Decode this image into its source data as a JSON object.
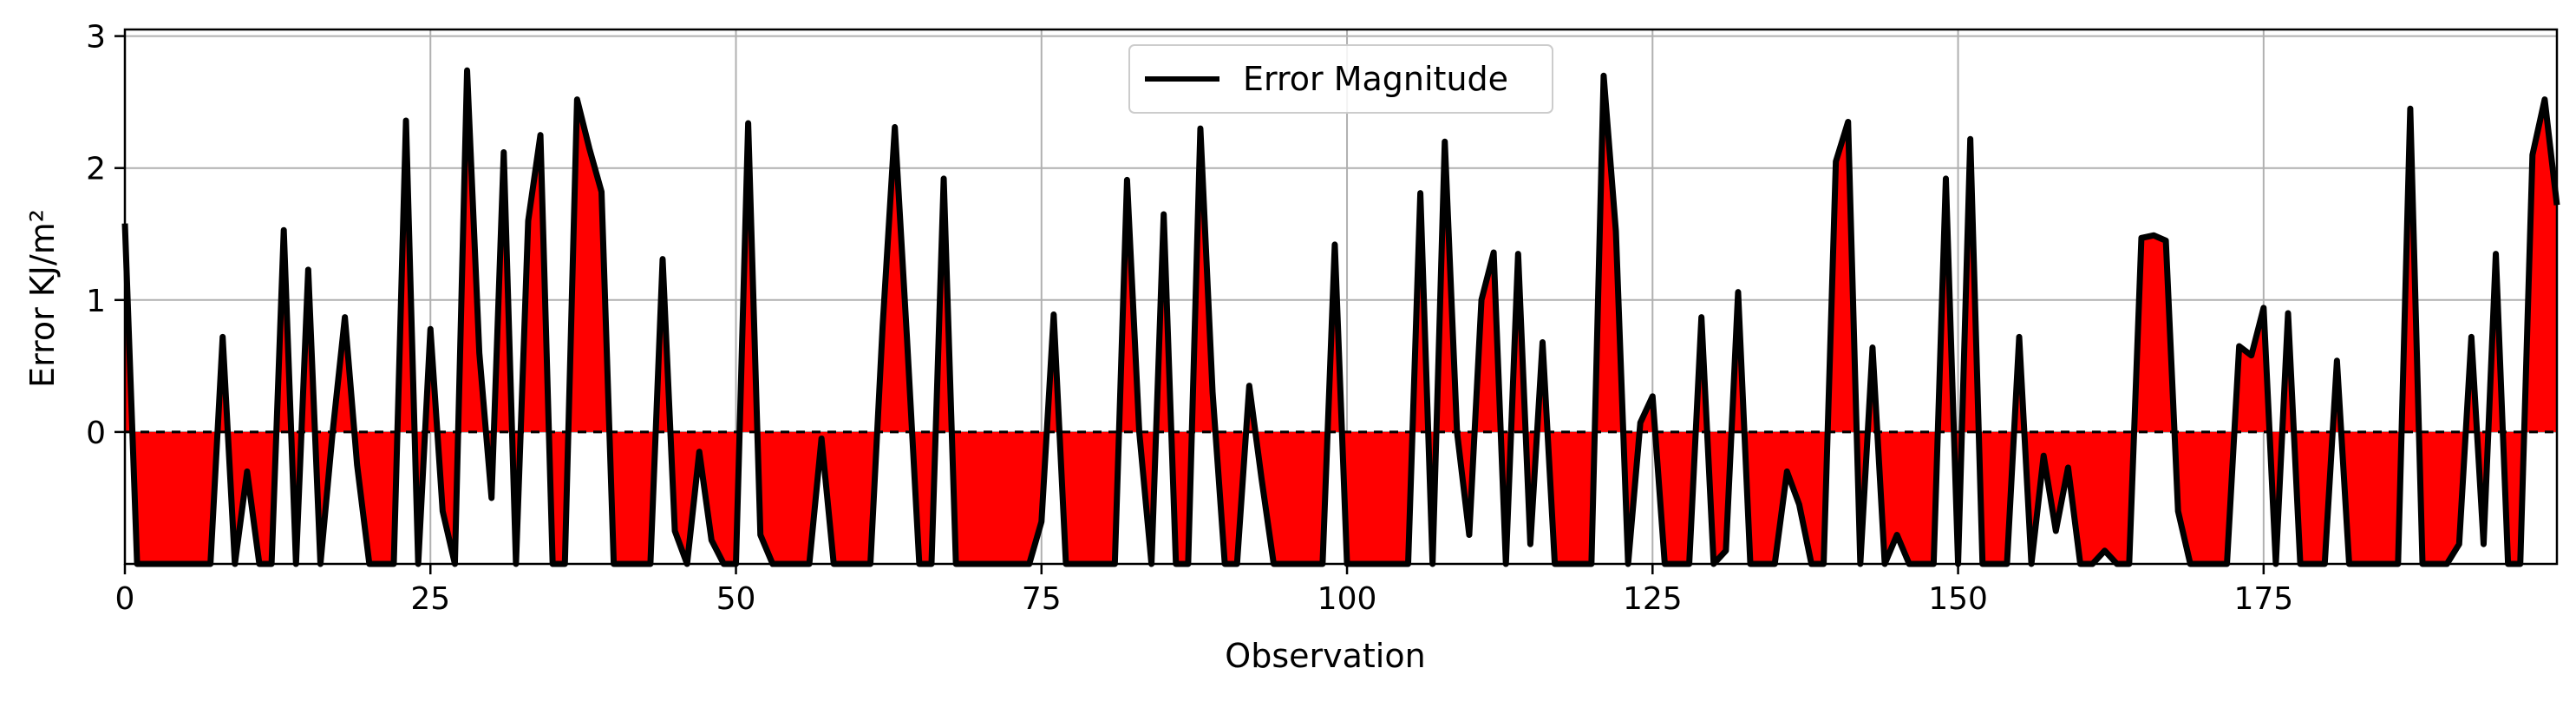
{
  "chart_data": {
    "type": "line",
    "title": "",
    "xlabel": "Observation",
    "ylabel": "Error KJ/m²",
    "xlim": [
      0,
      199
    ],
    "ylim": [
      -1.0,
      3.05
    ],
    "x_ticks": [
      0,
      25,
      50,
      75,
      100,
      125,
      150,
      175
    ],
    "y_ticks": [
      0,
      1,
      2,
      3
    ],
    "grid": true,
    "legend_position": "top-center",
    "fill_color": "#ff0000",
    "line_color": "#000000",
    "baseline": 0,
    "series": [
      {
        "name": "Error Magnitude",
        "values": [
          1.58,
          -1.0,
          -1.0,
          -1.0,
          -1.0,
          -1.0,
          -1.0,
          -1.0,
          0.72,
          -1.0,
          -0.3,
          -1.0,
          -1.0,
          1.53,
          -1.0,
          1.23,
          -1.0,
          0.0,
          0.87,
          -0.25,
          -1.0,
          -1.0,
          -1.0,
          2.36,
          -1.0,
          0.78,
          -0.6,
          -1.0,
          2.74,
          0.6,
          -0.5,
          2.12,
          -1.0,
          1.6,
          2.25,
          -1.0,
          -1.0,
          2.52,
          2.15,
          1.82,
          -1.0,
          -1.0,
          -1.0,
          -1.0,
          1.31,
          -0.75,
          -1.0,
          -0.15,
          -0.82,
          -1.0,
          -1.0,
          2.34,
          -0.78,
          -1.0,
          -1.0,
          -1.0,
          -1.0,
          -0.05,
          -1.0,
          -1.0,
          -1.0,
          -1.0,
          0.8,
          2.31,
          0.7,
          -1.0,
          -1.0,
          1.92,
          -1.0,
          -1.0,
          -1.0,
          -1.0,
          -1.0,
          -1.0,
          -1.0,
          -0.68,
          0.89,
          -1.0,
          -1.0,
          -1.0,
          -1.0,
          -1.0,
          1.91,
          0.0,
          -1.0,
          1.65,
          -1.0,
          -1.0,
          2.3,
          0.3,
          -1.0,
          -1.0,
          0.35,
          -0.35,
          -1.0,
          -1.0,
          -1.0,
          -1.0,
          -1.0,
          1.42,
          -1.0,
          -1.0,
          -1.0,
          -1.0,
          -1.0,
          -1.0,
          1.81,
          -1.0,
          2.2,
          0.0,
          -0.78,
          1.0,
          1.36,
          -1.0,
          1.35,
          -0.85,
          0.68,
          -1.0,
          -1.0,
          -1.0,
          -1.0,
          2.7,
          1.52,
          -1.0,
          0.07,
          0.27,
          -1.0,
          -1.0,
          -1.0,
          0.87,
          -1.0,
          -0.9,
          1.06,
          -1.0,
          -1.0,
          -1.0,
          -0.3,
          -0.55,
          -1.0,
          -1.0,
          2.05,
          2.35,
          -1.0,
          0.64,
          -1.0,
          -0.78,
          -1.0,
          -1.0,
          -1.0,
          1.92,
          -1.0,
          2.22,
          -1.0,
          -1.0,
          -1.0,
          0.72,
          -1.0,
          -0.18,
          -0.75,
          -0.27,
          -1.0,
          -1.0,
          -0.9,
          -1.0,
          -1.0,
          1.47,
          1.49,
          1.45,
          -0.6,
          -1.0,
          -1.0,
          -1.0,
          -1.0,
          0.65,
          0.58,
          0.94,
          -1.0,
          0.9,
          -1.0,
          -1.0,
          -1.0,
          0.54,
          -1.0,
          -1.0,
          -1.0,
          -1.0,
          -1.0,
          2.45,
          -1.0,
          -1.0,
          -1.0,
          -0.85,
          0.72,
          -0.85,
          1.35,
          -1.0,
          -1.0,
          2.1,
          2.52,
          1.72
        ]
      }
    ]
  }
}
